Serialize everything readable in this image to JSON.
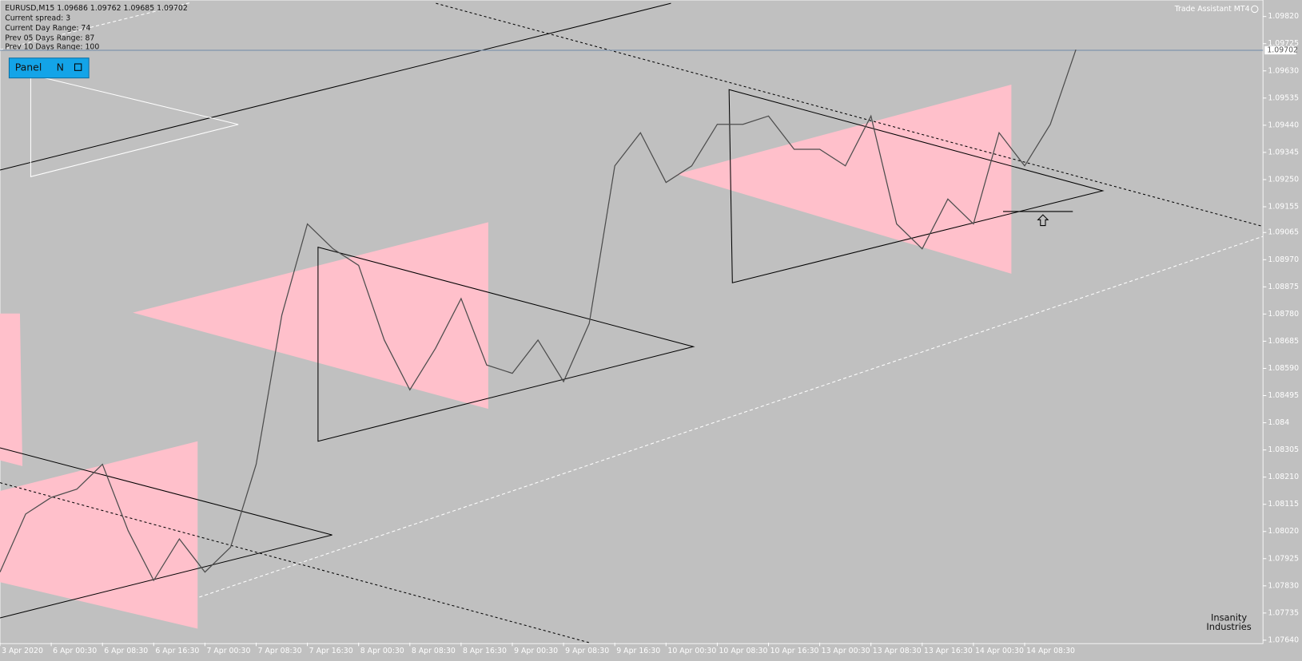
{
  "header": {
    "symbol_line": "EURUSD,M15  1.09686 1.09762 1.09685 1.09702",
    "info": [
      "Current spread: 3",
      "Current  Day   Range: 74",
      "Prev 05  Days  Range: 87",
      "Prev 10  Days  Range: 100"
    ]
  },
  "panel": {
    "title": "Panel",
    "button": "N"
  },
  "tool_label": "Trade Assistant MT4",
  "watermark": [
    "Insanity",
    "Industries"
  ],
  "chart_data": {
    "type": "line",
    "categories": [
      "3 Apr 2020",
      null,
      "6 Apr 00:30",
      null,
      "6 Apr 08:30",
      null,
      "6 Apr 16:30",
      null,
      "7 Apr 00:30",
      null,
      "7 Apr 08:30",
      null,
      "7 Apr 16:30",
      null,
      "8 Apr 00:30",
      null,
      "8 Apr 08:30",
      null,
      "8 Apr 16:30",
      null,
      "9 Apr 00:30",
      null,
      "9 Apr 08:30",
      null,
      "9 Apr 16:30",
      null,
      "10 Apr 00:30",
      null,
      "10 Apr 08:30",
      null,
      "10 Apr 16:30",
      null,
      "13 Apr 00:30",
      null,
      "13 Apr 08:30",
      null,
      "13 Apr 16:30",
      null,
      "14 Apr 00:30",
      null,
      "14 Apr 08:30",
      null,
      null
    ],
    "series": [
      {
        "name": "EURUSD",
        "color": "#4d4d4d",
        "values": [
          1.07878,
          1.08081,
          1.08139,
          1.08168,
          1.08255,
          1.08023,
          1.07849,
          1.07994,
          1.07878,
          1.07965,
          1.08255,
          1.08776,
          1.09095,
          1.09008,
          1.0895,
          1.08689,
          1.08515,
          1.0866,
          1.08834,
          1.08602,
          1.08573,
          1.08689,
          1.08544,
          1.08747,
          1.09298,
          1.09414,
          1.0924,
          1.09298,
          1.09443,
          1.09443,
          1.09472,
          1.09356,
          1.09356,
          1.09298,
          1.09472,
          1.09095,
          1.09008,
          1.09182,
          1.09095,
          1.09414,
          1.09298,
          1.09443,
          1.09704
        ]
      }
    ],
    "current_price": {
      "value": 1.09702,
      "label": "1.09702"
    },
    "ylim": [
      1.07631,
      1.09869
    ],
    "yticks": [
      {
        "value": 1.0982,
        "label": "1.09820"
      },
      {
        "value": 1.09725,
        "label": "1.09725"
      },
      {
        "value": 1.0963,
        "label": "1.09630"
      },
      {
        "value": 1.09535,
        "label": "1.09535"
      },
      {
        "value": 1.0944,
        "label": "1.09440"
      },
      {
        "value": 1.09345,
        "label": "1.09345"
      },
      {
        "value": 1.0925,
        "label": "1.09250"
      },
      {
        "value": 1.09155,
        "label": "1.09155"
      },
      {
        "value": 1.09065,
        "label": "1.09065"
      },
      {
        "value": 1.0897,
        "label": "1.08970"
      },
      {
        "value": 1.08875,
        "label": "1.08875"
      },
      {
        "value": 1.0878,
        "label": "1.08780"
      },
      {
        "value": 1.08685,
        "label": "1.08685"
      },
      {
        "value": 1.0859,
        "label": "1.08590"
      },
      {
        "value": 1.08495,
        "label": "1.08495"
      },
      1.084,
      {
        "value": 1.08305,
        "label": "1.08305"
      },
      {
        "value": 1.0821,
        "label": "1.08210"
      },
      {
        "value": 1.08115,
        "label": "1.08115"
      },
      {
        "value": 1.0802,
        "label": "1.08020"
      },
      {
        "value": 1.07925,
        "label": "1.07925"
      },
      {
        "value": 1.0783,
        "label": "1.07830"
      },
      {
        "value": 1.07735,
        "label": "1.07735"
      },
      {
        "value": 1.0764,
        "label": "1.07640"
      }
    ],
    "grid": false
  }
}
